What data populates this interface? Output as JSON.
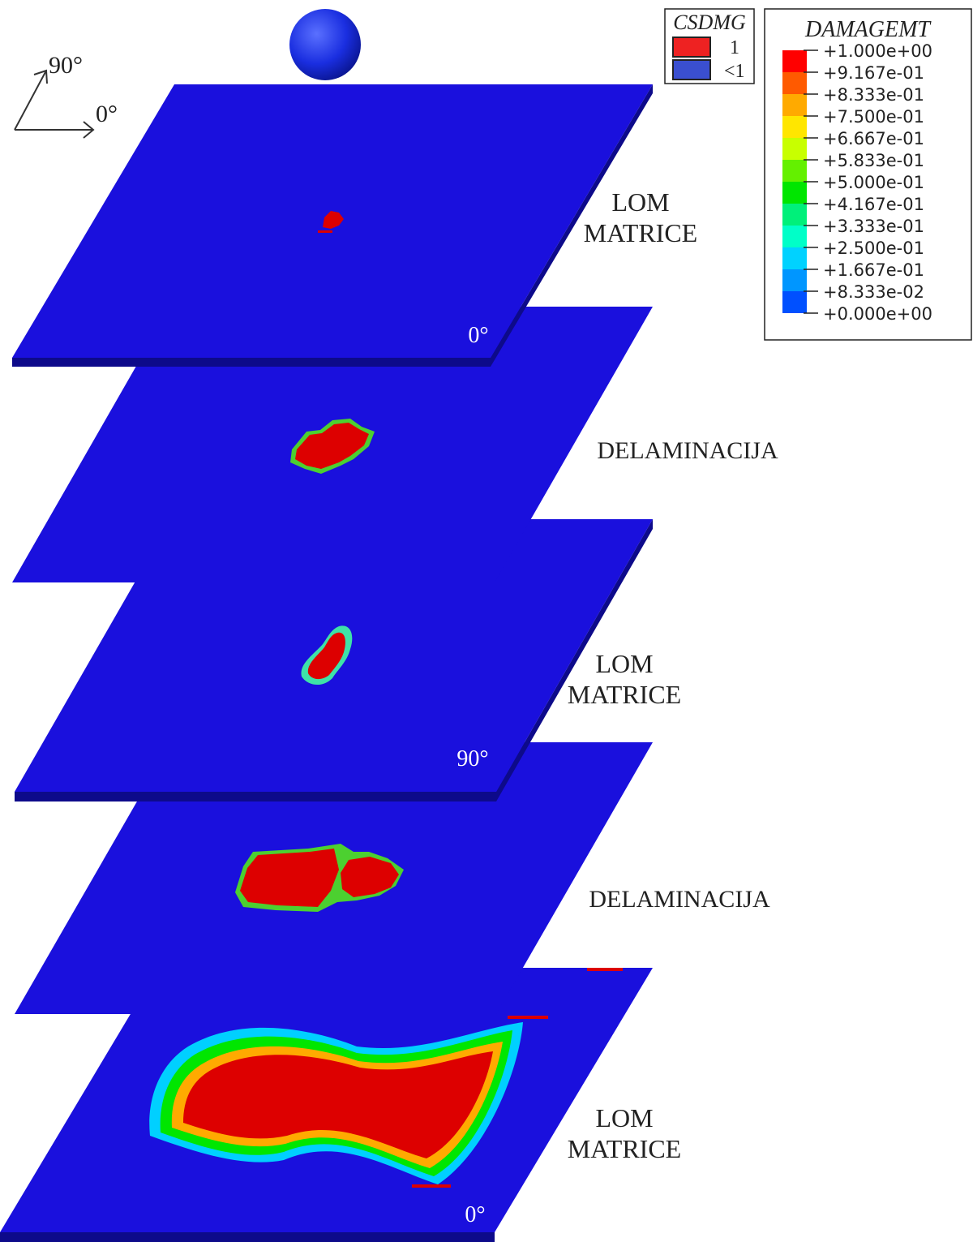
{
  "axes": {
    "label_90": "90°",
    "label_0": "0°"
  },
  "csdmg_legend": {
    "title": "CSDMG",
    "entries": [
      {
        "label": "1",
        "color": "#ee2222"
      },
      {
        "label": "<1",
        "color": "#3a4fd0"
      }
    ]
  },
  "damagemt_legend": {
    "title": "DAMAGEMT",
    "levels": [
      {
        "label": "+1.000e+00",
        "color": "#ff0000"
      },
      {
        "label": "+9.167e-01",
        "color": "#ff5a00"
      },
      {
        "label": "+8.333e-01",
        "color": "#ffaa00"
      },
      {
        "label": "+7.500e-01",
        "color": "#ffe600"
      },
      {
        "label": "+6.667e-01",
        "color": "#c8ff00"
      },
      {
        "label": "+5.833e-01",
        "color": "#64f000"
      },
      {
        "label": "+5.000e-01",
        "color": "#00e600"
      },
      {
        "label": "+4.167e-01",
        "color": "#00f07a"
      },
      {
        "label": "+3.333e-01",
        "color": "#00ffc8"
      },
      {
        "label": "+2.500e-01",
        "color": "#00d2ff"
      },
      {
        "label": "+1.667e-01",
        "color": "#0096ff"
      },
      {
        "label": "+8.333e-02",
        "color": "#0050ff"
      },
      {
        "label": "+0.000e+00",
        "color": "#0000ff"
      }
    ]
  },
  "layers": [
    {
      "label_lines": [
        "LOM",
        "MATRICE"
      ],
      "ply_angle": "0°"
    },
    {
      "label_lines": [
        "DELAMINACIJA"
      ],
      "ply_angle": ""
    },
    {
      "label_lines": [
        "LOM",
        "MATRICE"
      ],
      "ply_angle": "90°"
    },
    {
      "label_lines": [
        "DELAMINACIJA"
      ],
      "ply_angle": ""
    },
    {
      "label_lines": [
        "LOM",
        "MATRICE"
      ],
      "ply_angle": "0°"
    }
  ],
  "colors": {
    "plate": "#1a10dd",
    "plate_edge": "#0d0a8a",
    "damage": "#dd0000",
    "impactor": "#1a2ee0"
  }
}
